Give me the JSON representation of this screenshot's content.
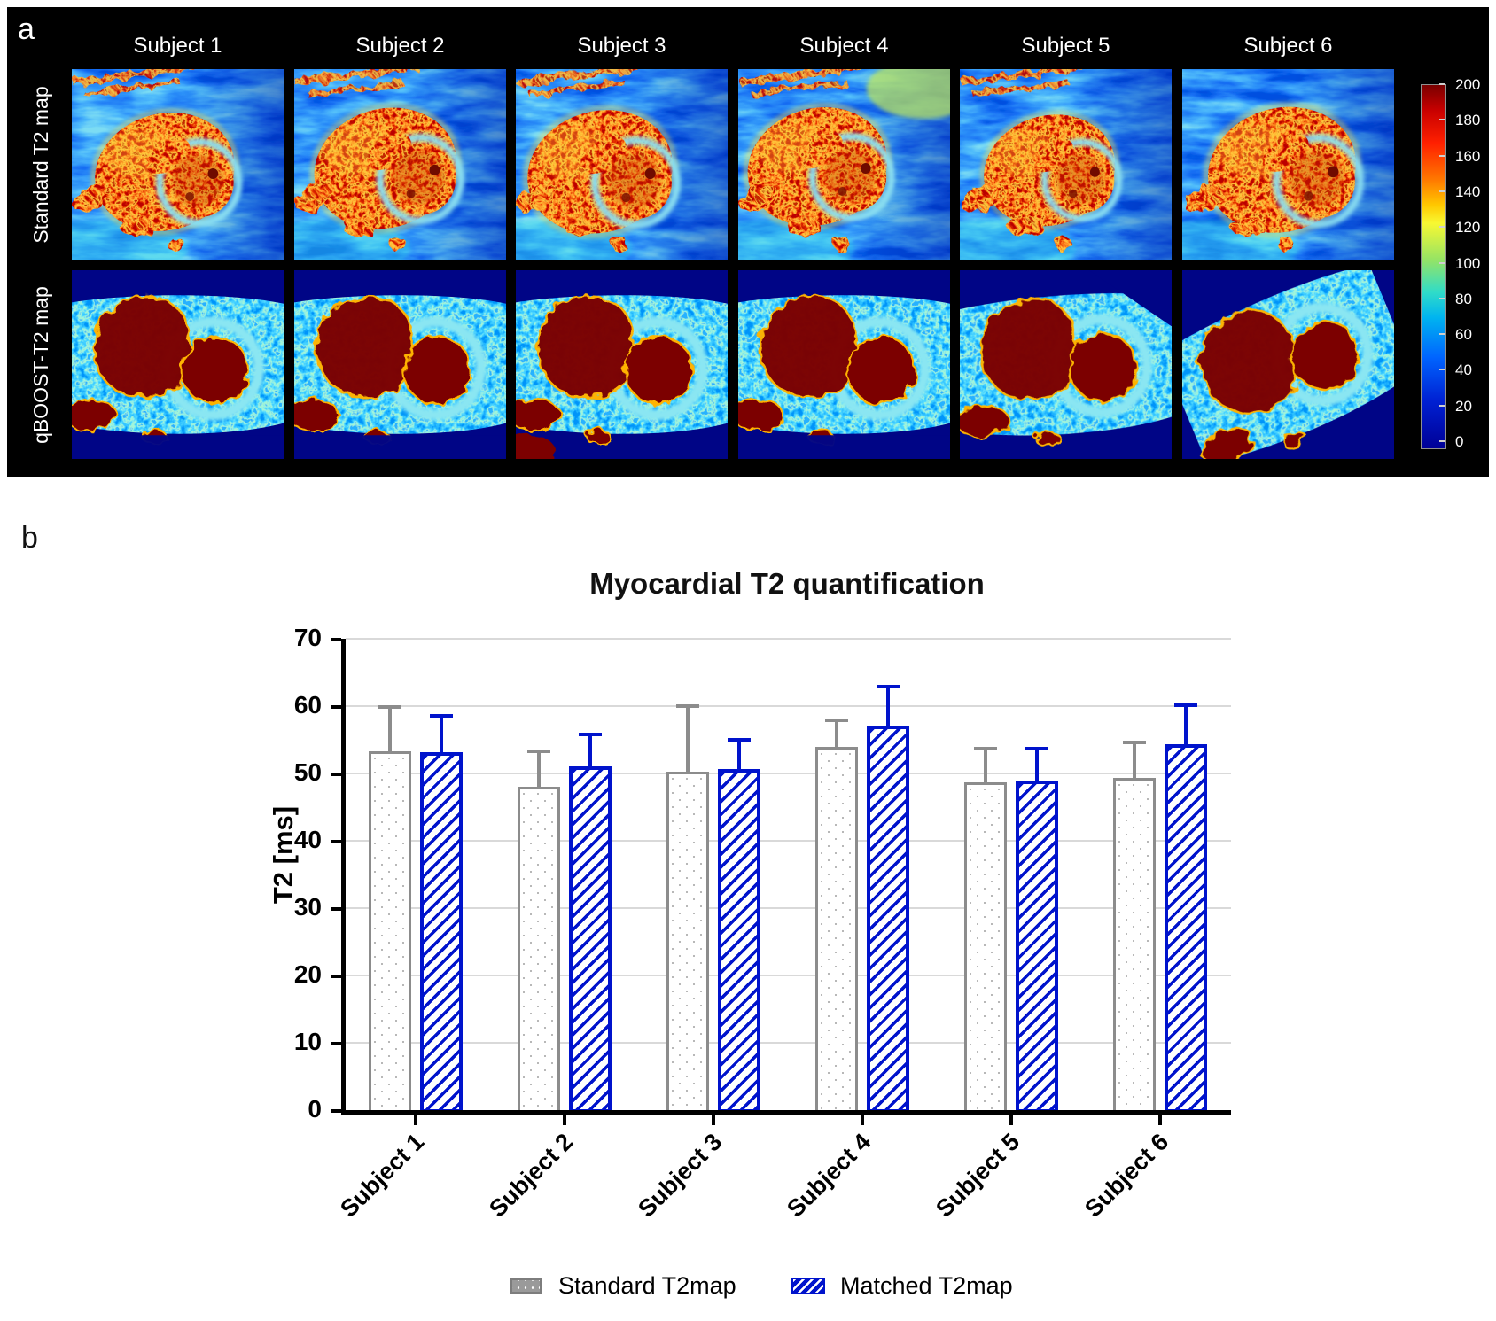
{
  "panel_a": {
    "label": "a",
    "row_labels": [
      "Standard T2 map",
      "qBOOST-T2 map"
    ],
    "subjects": [
      "Subject 1",
      "Subject 2",
      "Subject 3",
      "Subject 4",
      "Subject  5",
      "Subject  6"
    ],
    "colorbar": {
      "ticks": [
        "200",
        "180",
        "160",
        "140",
        "120",
        "100",
        "80",
        "60",
        "40",
        "20",
        "0"
      ]
    }
  },
  "panel_b": {
    "label": "b"
  },
  "chart_data": {
    "type": "bar",
    "title": "Myocardial T2 quantification",
    "ylabel": "T2 [ms]",
    "ylim": [
      0,
      70
    ],
    "yticks": [
      "0",
      "10",
      "20",
      "30",
      "40",
      "50",
      "60",
      "70"
    ],
    "categories": [
      "Subject 1",
      "Subject 2",
      "Subject 3",
      "Subject 4",
      "Subject 5",
      "Subject 6"
    ],
    "series": [
      {
        "name": "Standard T2map",
        "color": "#8c8c8c",
        "pattern": "dots",
        "values": [
          53.3,
          48.0,
          50.2,
          53.9,
          48.7,
          49.3
        ],
        "errors_plus": [
          6.8,
          5.6,
          10.1,
          4.3,
          5.2,
          5.6
        ]
      },
      {
        "name": "Matched T2map",
        "color": "#0013cc",
        "pattern": "diagonal-hatch",
        "values": [
          53.1,
          51.0,
          50.7,
          57.1,
          48.9,
          54.3
        ],
        "errors_plus": [
          5.7,
          5.1,
          4.5,
          6.0,
          5.0,
          6.1
        ]
      }
    ],
    "legend_position": "bottom",
    "grid": "horizontal"
  }
}
